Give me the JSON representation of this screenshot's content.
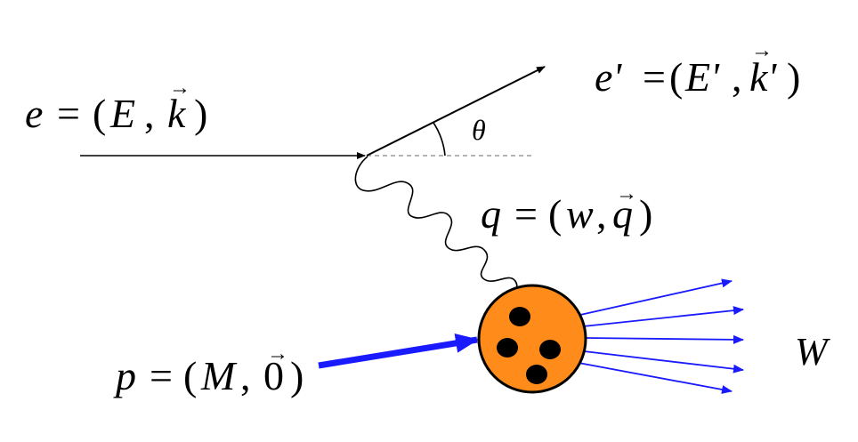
{
  "labels": {
    "electron_in": {
      "var": "e",
      "eq": "=",
      "lp": "(",
      "a": "E",
      "comma": ",",
      "b": "k",
      "rp": ")"
    },
    "electron_out": {
      "var": "e'",
      "eq": "=",
      "lp": "(",
      "a": "E'",
      "comma": ",",
      "b": "k'",
      "rp": ")"
    },
    "photon": {
      "var": "q",
      "eq": "=",
      "lp": "(",
      "a": "w",
      "comma": ",",
      "b": "q",
      "rp": ")"
    },
    "proton": {
      "var": "p",
      "eq": "=",
      "lp": "(",
      "a": "M",
      "comma": ",",
      "b": "0",
      "rp": ")"
    },
    "angle": "θ",
    "hadrons": "W",
    "vector_mark": "→"
  },
  "colors": {
    "electron_line": "#000000",
    "reference_dash": "#888888",
    "proton_arrow": "#1a1aff",
    "hadron_arrows": "#1a1aff",
    "nucleon_fill": "#ff8c1a",
    "nucleon_outline": "#000000",
    "quark": "#000000"
  },
  "quark_count": 4,
  "hadron_arrow_count": 5
}
